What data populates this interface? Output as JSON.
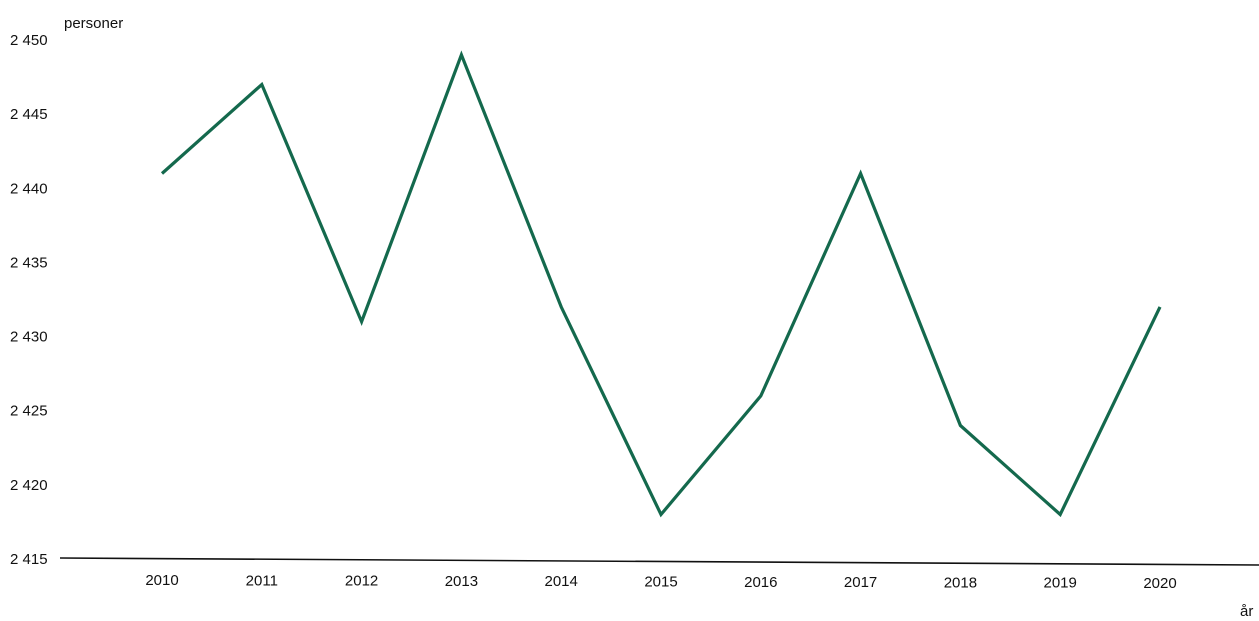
{
  "chart_data": {
    "type": "line",
    "ylabel": "personer",
    "xlabel": "år",
    "ylim": [
      2415,
      2450
    ],
    "yticks": [
      2415,
      2420,
      2425,
      2430,
      2435,
      2440,
      2445,
      2450
    ],
    "ytick_labels": [
      "2 415",
      "2 420",
      "2 425",
      "2 430",
      "2 435",
      "2 440",
      "2 445",
      "2 450"
    ],
    "categories": [
      "2010",
      "2011",
      "2012",
      "2013",
      "2014",
      "2015",
      "2016",
      "2017",
      "2018",
      "2019",
      "2020"
    ],
    "series": [
      {
        "values": [
          2441,
          2447,
          2431,
          2449,
          2432,
          2418,
          2426,
          2441,
          2424,
          2418,
          2432
        ],
        "color": "#14694d"
      }
    ],
    "grid": false,
    "legend": "none"
  }
}
